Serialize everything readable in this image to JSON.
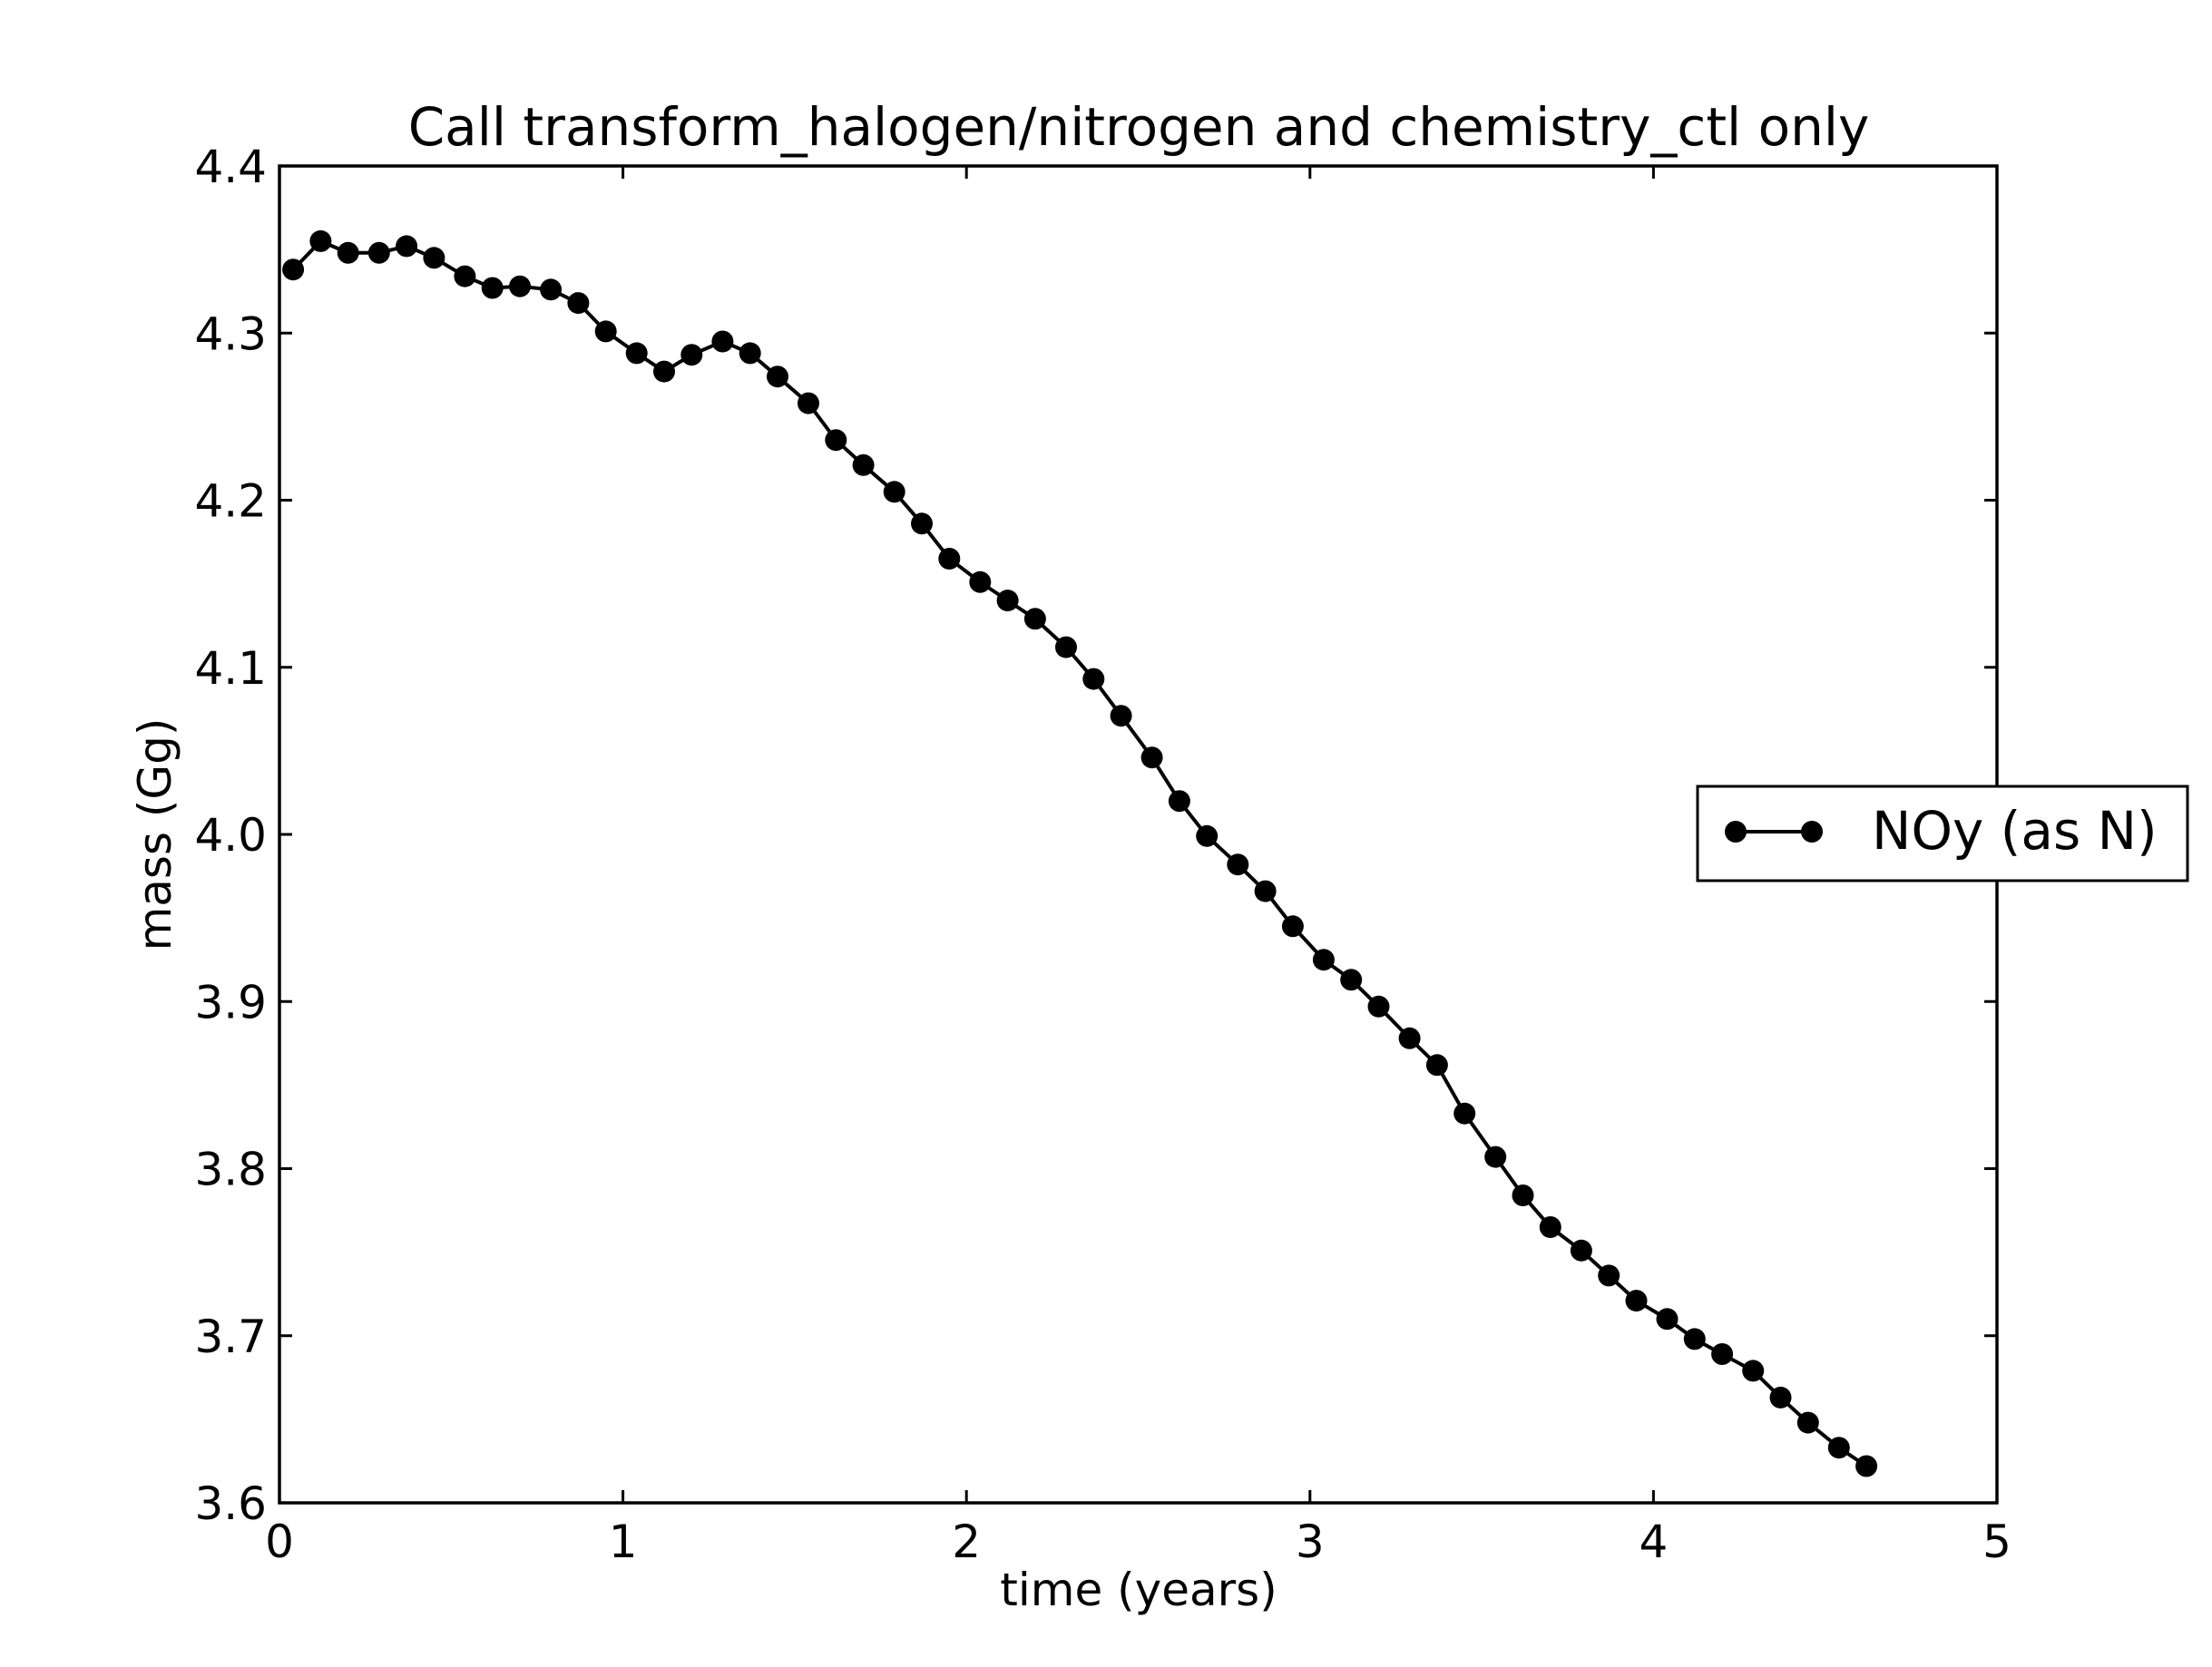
{
  "chart_data": {
    "type": "line",
    "title": "Call transform_halogen/nitrogen and chemistry_ctl only",
    "xlabel": "time (years)",
    "ylabel": "mass (Gg)",
    "xlim": [
      0,
      5
    ],
    "ylim": [
      3.6,
      4.4
    ],
    "xticks": [
      "0",
      "1",
      "2",
      "3",
      "4",
      "5"
    ],
    "yticks": [
      "3.6",
      "3.7",
      "3.8",
      "3.9",
      "4.0",
      "4.1",
      "4.2",
      "4.3",
      "4.4"
    ],
    "grid": false,
    "legend": {
      "placement": "right",
      "entries": [
        "NOy (as N)"
      ]
    },
    "series": [
      {
        "name": "NOy (as N)",
        "color": "#000000",
        "marker": "circle",
        "x": [
          0.04,
          0.12,
          0.2,
          0.29,
          0.37,
          0.45,
          0.54,
          0.62,
          0.7,
          0.79,
          0.87,
          0.95,
          1.04,
          1.12,
          1.2,
          1.29,
          1.37,
          1.45,
          1.54,
          1.62,
          1.7,
          1.79,
          1.87,
          1.95,
          2.04,
          2.12,
          2.2,
          2.29,
          2.37,
          2.45,
          2.54,
          2.62,
          2.7,
          2.79,
          2.87,
          2.95,
          3.04,
          3.12,
          3.2,
          3.29,
          3.37,
          3.45,
          3.54,
          3.62,
          3.7,
          3.79,
          3.87,
          3.95,
          4.04,
          4.12,
          4.2,
          4.29,
          4.37,
          4.45,
          4.54,
          4.62
        ],
        "y": [
          4.338,
          4.355,
          4.348,
          4.348,
          4.352,
          4.345,
          4.334,
          4.327,
          4.328,
          4.326,
          4.318,
          4.301,
          4.288,
          4.277,
          4.287,
          4.295,
          4.288,
          4.274,
          4.258,
          4.236,
          4.221,
          4.205,
          4.186,
          4.165,
          4.151,
          4.14,
          4.129,
          4.112,
          4.093,
          4.071,
          4.046,
          4.02,
          3.999,
          3.982,
          3.966,
          3.945,
          3.925,
          3.913,
          3.897,
          3.878,
          3.862,
          3.833,
          3.807,
          3.784,
          3.765,
          3.751,
          3.736,
          3.721,
          3.71,
          3.698,
          3.689,
          3.679,
          3.663,
          3.648,
          3.633,
          3.622
        ]
      }
    ]
  }
}
